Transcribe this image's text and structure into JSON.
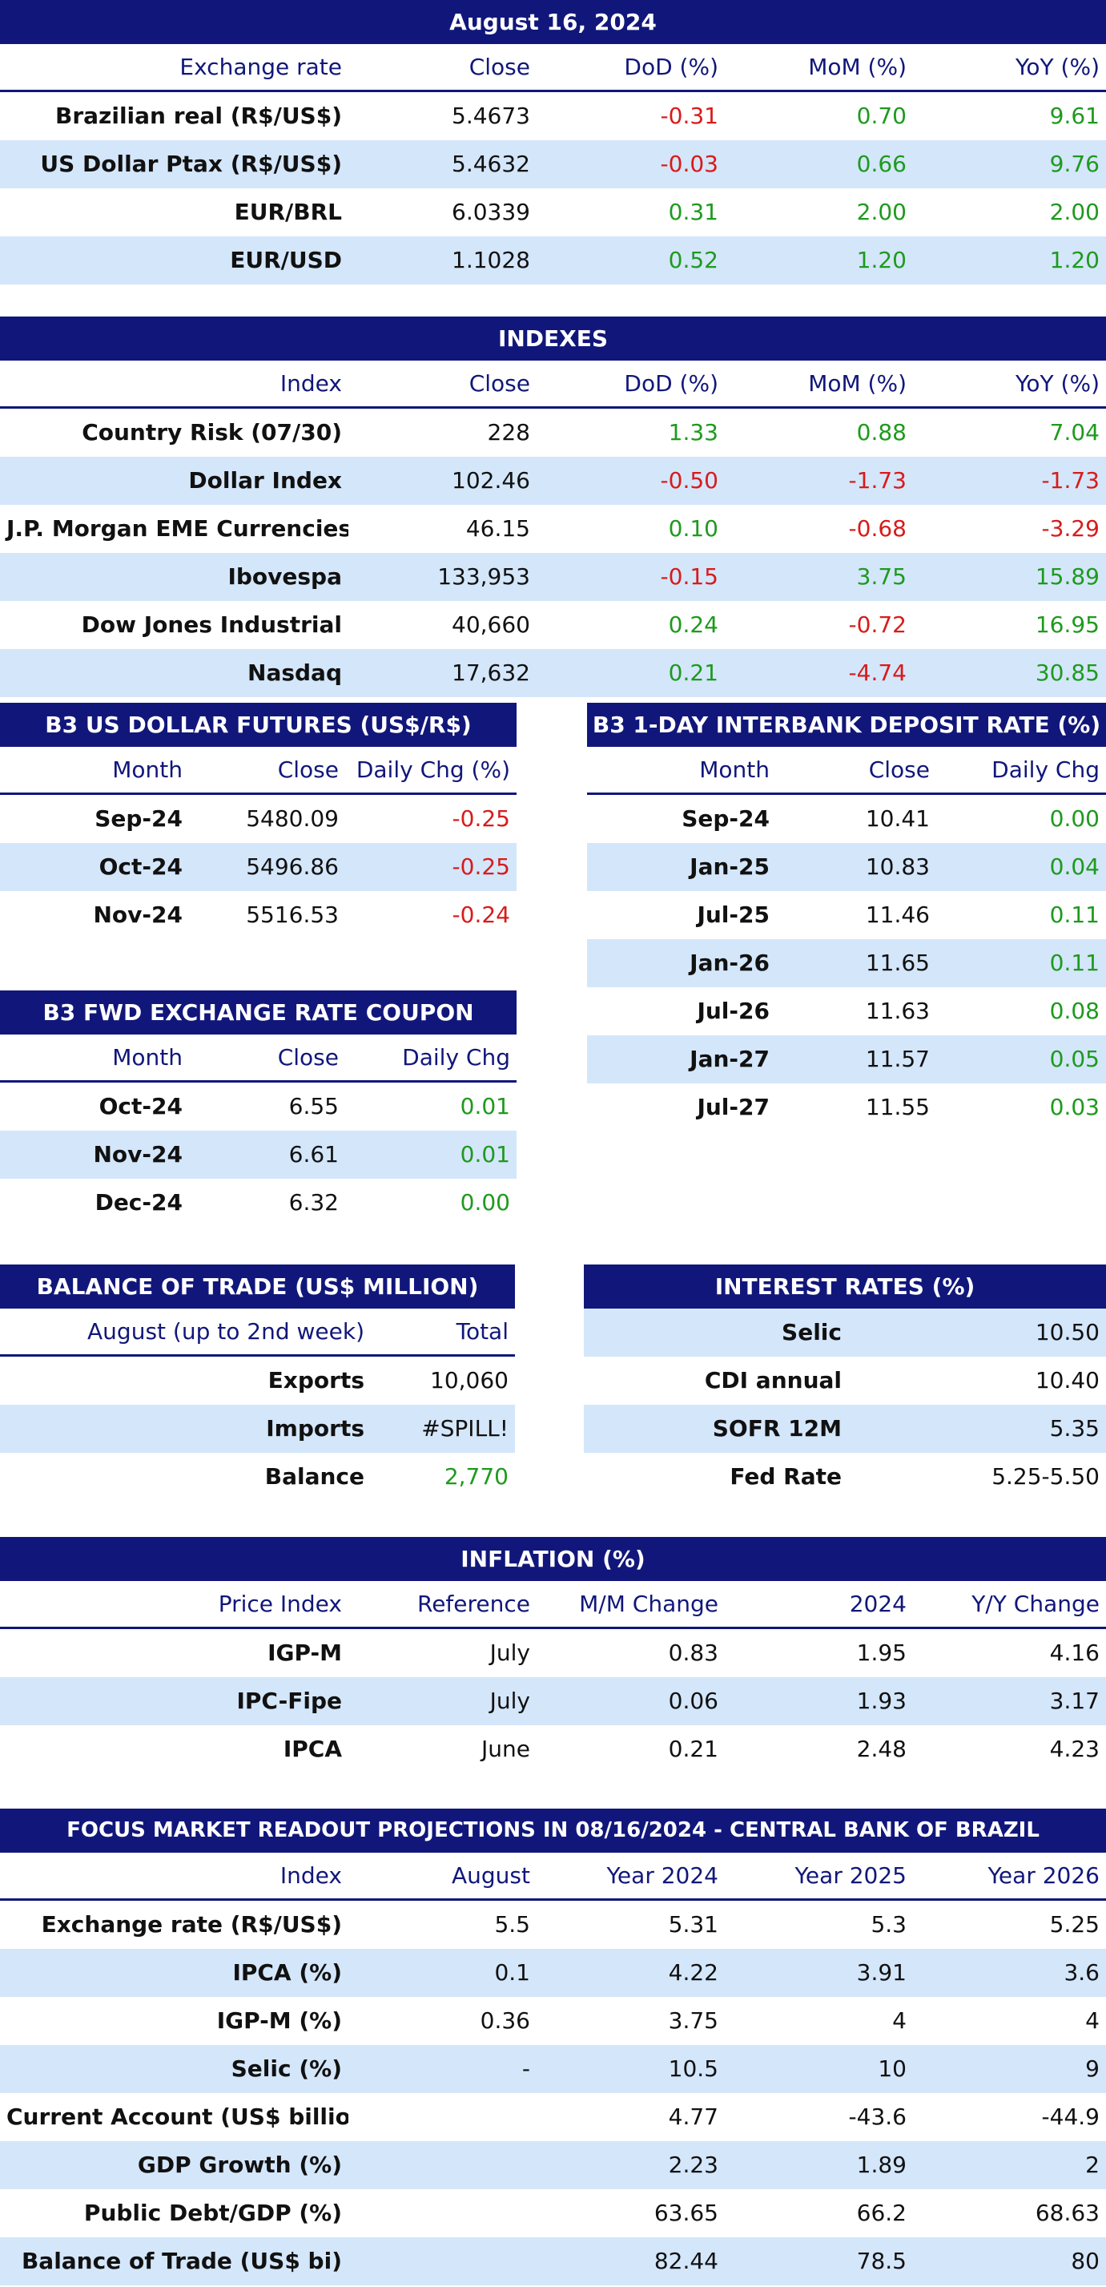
{
  "exchange": {
    "title": "August 16, 2024",
    "headers": [
      "Exchange rate",
      "Close",
      "DoD (%)",
      "MoM (%)",
      "YoY (%)"
    ],
    "rows": [
      [
        "Brazilian real (R$/US$)",
        "5.4673",
        "-0.31",
        "0.70",
        "9.61"
      ],
      [
        "US Dollar Ptax (R$/US$)",
        "5.4632",
        "-0.03",
        "0.66",
        "9.76"
      ],
      [
        "EUR/BRL",
        "6.0339",
        "0.31",
        "2.00",
        "2.00"
      ],
      [
        "EUR/USD",
        "1.1028",
        "0.52",
        "1.20",
        "1.20"
      ]
    ]
  },
  "indexes": {
    "title": "INDEXES",
    "headers": [
      "Index",
      "Close",
      "DoD (%)",
      "MoM (%)",
      "YoY (%)"
    ],
    "rows": [
      [
        "Country Risk (07/30)",
        "228",
        "1.33",
        "0.88",
        "7.04"
      ],
      [
        "Dollar Index",
        "102.46",
        "-0.50",
        "-1.73",
        "-1.73"
      ],
      [
        "J.P. Morgan EME Currencies",
        "46.15",
        "0.10",
        "-0.68",
        "-3.29"
      ],
      [
        "Ibovespa",
        "133,953",
        "-0.15",
        "3.75",
        "15.89"
      ],
      [
        "Dow Jones Industrial",
        "40,660",
        "0.24",
        "-0.72",
        "16.95"
      ],
      [
        "Nasdaq",
        "17,632",
        "0.21",
        "-4.74",
        "30.85"
      ]
    ]
  },
  "dollar_futures": {
    "title": "B3 US DOLLAR FUTURES (US$/R$)",
    "headers": [
      "Month",
      "Close",
      "Daily Chg (%)"
    ],
    "rows": [
      [
        "Sep-24",
        "5480.09",
        "-0.25"
      ],
      [
        "Oct-24",
        "5496.86",
        "-0.25"
      ],
      [
        "Nov-24",
        "5516.53",
        "-0.24"
      ]
    ]
  },
  "interbank": {
    "title": "B3 1-DAY INTERBANK DEPOSIT RATE (%)",
    "headers": [
      "Month",
      "Close",
      "Daily Chg"
    ],
    "rows": [
      [
        "Sep-24",
        "10.41",
        "0.00"
      ],
      [
        "Jan-25",
        "10.83",
        "0.04"
      ],
      [
        "Jul-25",
        "11.46",
        "0.11"
      ],
      [
        "Jan-26",
        "11.65",
        "0.11"
      ],
      [
        "Jul-26",
        "11.63",
        "0.08"
      ],
      [
        "Jan-27",
        "11.57",
        "0.05"
      ],
      [
        "Jul-27",
        "11.55",
        "0.03"
      ]
    ]
  },
  "coupon": {
    "title": "B3 FWD EXCHANGE RATE COUPON",
    "headers": [
      "Month",
      "Close",
      "Daily Chg"
    ],
    "rows": [
      [
        "Oct-24",
        "6.55",
        "0.01"
      ],
      [
        "Nov-24",
        "6.61",
        "0.01"
      ],
      [
        "Dec-24",
        "6.32",
        "0.00"
      ]
    ]
  },
  "trade": {
    "title": "BALANCE OF TRADE (US$ MILLION)",
    "headers": [
      "August (up to 2nd week)",
      "Total"
    ],
    "rows": [
      [
        "Exports",
        "10,060"
      ],
      [
        "Imports",
        "#SPILL!"
      ],
      [
        "Balance",
        "2,770"
      ]
    ]
  },
  "interest": {
    "title": "INTEREST RATES (%)",
    "rows": [
      [
        "Selic",
        "10.50"
      ],
      [
        "CDI annual",
        "10.40"
      ],
      [
        "SOFR 12M",
        "5.35"
      ],
      [
        "Fed Rate",
        "5.25-5.50"
      ]
    ]
  },
  "inflation": {
    "title": "INFLATION (%)",
    "headers": [
      "Price Index",
      "Reference",
      "M/M Change",
      "2024",
      "Y/Y Change"
    ],
    "rows": [
      [
        "IGP-M",
        "July",
        "0.83",
        "1.95",
        "4.16"
      ],
      [
        "IPC-Fipe",
        "July",
        "0.06",
        "1.93",
        "3.17"
      ],
      [
        "IPCA",
        "June",
        "0.21",
        "2.48",
        "4.23"
      ]
    ]
  },
  "focus": {
    "title": "FOCUS MARKET READOUT PROJECTIONS IN 08/16/2024 - CENTRAL BANK OF BRAZIL",
    "headers": [
      "Index",
      "August",
      "Year 2024",
      "Year 2025",
      "Year 2026"
    ],
    "rows": [
      [
        "Exchange rate (R$/US$)",
        "5.5",
        "5.31",
        "5.3",
        "5.25"
      ],
      [
        "IPCA (%)",
        "0.1",
        "4.22",
        "3.91",
        "3.6"
      ],
      [
        "IGP-M (%)",
        "0.36",
        "3.75",
        "4",
        "4"
      ],
      [
        "Selic (%)",
        "-",
        "10.5",
        "10",
        "9"
      ],
      [
        "Current Account (US$ billion)",
        "",
        "4.77",
        "-43.6",
        "-44.9"
      ],
      [
        "GDP Growth (%)",
        "",
        "2.23",
        "1.89",
        "2"
      ],
      [
        "Public Debt/GDP (%)",
        "",
        "63.65",
        "66.2",
        "68.63"
      ],
      [
        "Balance of Trade (US$ bi)",
        "",
        "82.44",
        "78.5",
        "80"
      ]
    ]
  },
  "colors": {
    "header_bg": "#11177a",
    "row_alt": "#d4e6fa",
    "positive": "#1e9a1e",
    "negative": "#d81b1b"
  }
}
